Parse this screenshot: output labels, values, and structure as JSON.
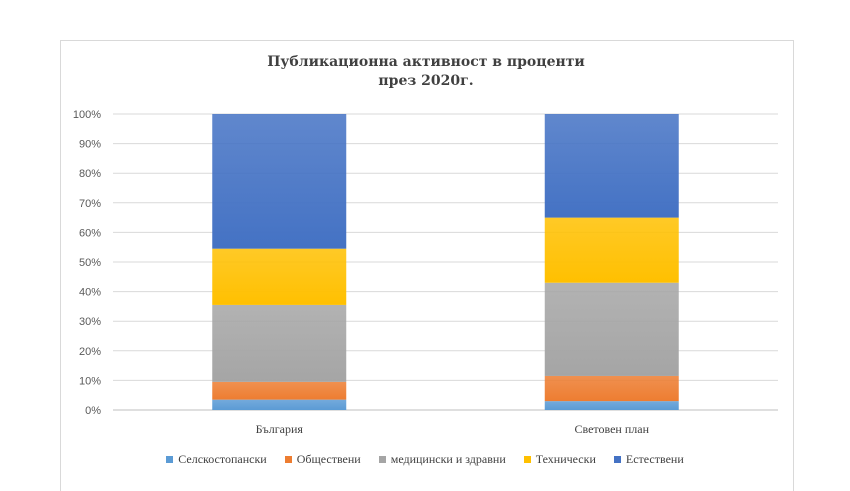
{
  "chart_data": {
    "type": "bar",
    "stacked": true,
    "title_lines": [
      "Публикационна активност в проценти",
      "през 2020г."
    ],
    "categories": [
      "България",
      "Световен план"
    ],
    "y_ticks": [
      "0%",
      "10%",
      "20%",
      "30%",
      "40%",
      "50%",
      "60%",
      "70%",
      "80%",
      "90%",
      "100%"
    ],
    "ylim": [
      0,
      100
    ],
    "grid": true,
    "legend_position": "bottom",
    "series": [
      {
        "name": "Селскостопански",
        "color": "#5b9bd5",
        "values": [
          3.5,
          3
        ]
      },
      {
        "name": "Обществени",
        "color": "#ed7d31",
        "values": [
          6,
          8.5
        ]
      },
      {
        "name": "медицински и здравни",
        "color": "#a5a5a5",
        "values": [
          26,
          31.5
        ]
      },
      {
        "name": "Технически",
        "color": "#ffc000",
        "values": [
          19,
          22
        ]
      },
      {
        "name": "Естествени",
        "color": "#4472c4",
        "values": [
          45.5,
          35
        ]
      }
    ]
  }
}
